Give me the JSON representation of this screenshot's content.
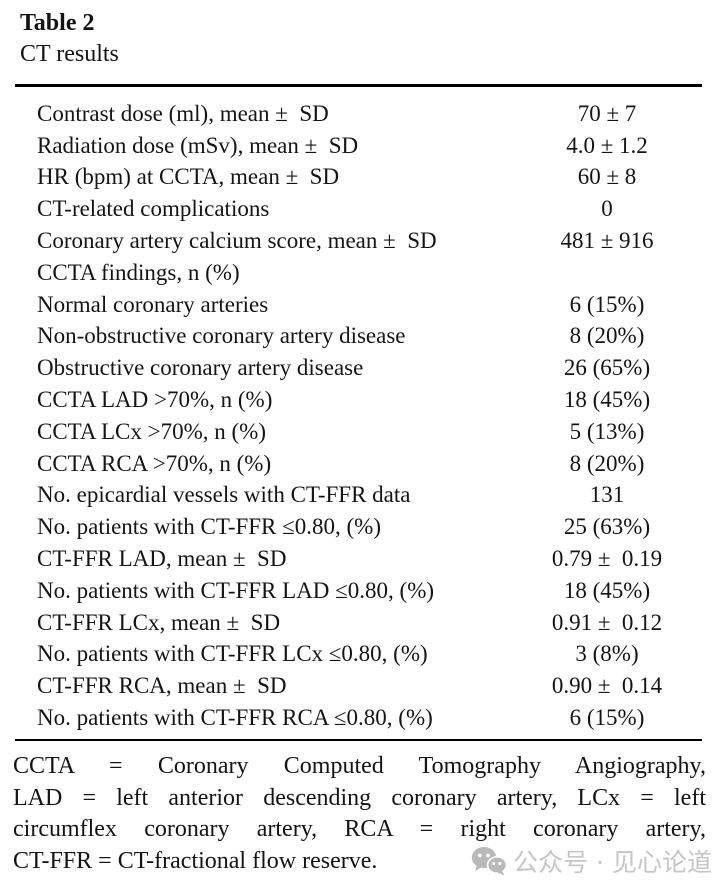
{
  "caption": {
    "label": "Table 2",
    "title": "CT results"
  },
  "table": {
    "rows": [
      {
        "label": "Contrast dose (ml), mean ±  SD",
        "value": "70 ± 7"
      },
      {
        "label": "Radiation dose (mSv), mean ±  SD",
        "value": "4.0 ± 1.2"
      },
      {
        "label": "HR (bpm) at CCTA, mean ±  SD",
        "value": "60 ± 8"
      },
      {
        "label": "CT-related complications",
        "value": "0"
      },
      {
        "label": "Coronary artery calcium score, mean ±  SD",
        "value": "481 ± 916"
      },
      {
        "label": "CCTA findings, n (%)",
        "value": ""
      },
      {
        "label": "Normal coronary arteries",
        "value": "6 (15%)"
      },
      {
        "label": "Non-obstructive coronary artery disease",
        "value": "8 (20%)"
      },
      {
        "label": "Obstructive coronary artery disease",
        "value": "26 (65%)"
      },
      {
        "label": "CCTA LAD >70%, n (%)",
        "value": "18 (45%)"
      },
      {
        "label": "CCTA LCx >70%, n (%)",
        "value": "5 (13%)"
      },
      {
        "label": "CCTA RCA >70%, n (%)",
        "value": "8 (20%)"
      },
      {
        "label": "No. epicardial vessels with CT-FFR data",
        "value": "131"
      },
      {
        "label": "No. patients with CT-FFR ≤0.80, (%)",
        "value": "25 (63%)"
      },
      {
        "label": "CT-FFR LAD, mean ±  SD",
        "value": "0.79 ±  0.19"
      },
      {
        "label": "No. patients with CT-FFR LAD ≤0.80, (%)",
        "value": "18 (45%)"
      },
      {
        "label": "CT-FFR LCx, mean ±  SD",
        "value": "0.91 ±  0.12"
      },
      {
        "label": "No. patients with CT-FFR LCx ≤0.80, (%)",
        "value": "3 (8%)"
      },
      {
        "label": "CT-FFR RCA, mean ±  SD",
        "value": "0.90 ±  0.14"
      },
      {
        "label": "No. patients with CT-FFR RCA ≤0.80, (%)",
        "value": "6 (15%)"
      }
    ]
  },
  "footnote": {
    "lines": [
      "CCTA = Coronary Computed Tomography Angiography,",
      "LAD = left anterior descending coronary artery, LCx = left",
      "circumflex coronary artery, RCA = right coronary artery,",
      "CT-FFR = CT-fractional flow reserve."
    ]
  },
  "watermark": {
    "icon": "wechat-icon",
    "text": "公众号 · 见心论道",
    "color": "#c6c6c6"
  },
  "colors": {
    "text": "#141414",
    "rule": "#000000",
    "background": "#ffffff",
    "watermark": "#c6c6c6"
  }
}
